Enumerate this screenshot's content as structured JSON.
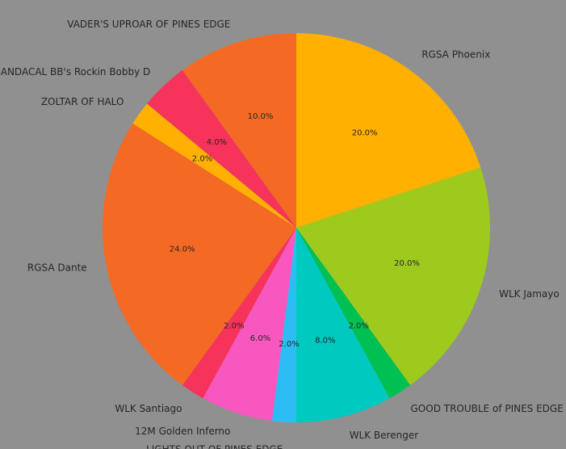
{
  "chart_data": {
    "type": "pie",
    "title": "",
    "start_angle_deg": 90,
    "direction": "clockwise",
    "legend": "none",
    "slices": [
      {
        "label": "RGSA Phoenix",
        "value": 20.0,
        "pct_label": "20.0%",
        "color": "#FFB000"
      },
      {
        "label": "WLK Jamayo",
        "value": 20.0,
        "pct_label": "20.0%",
        "color": "#9ECA1E"
      },
      {
        "label": "GOOD TROUBLE of PINES EDGE",
        "value": 2.0,
        "pct_label": "2.0%",
        "color": "#00C051"
      },
      {
        "label": "WLK Berenger",
        "value": 8.0,
        "pct_label": "8.0%",
        "color": "#00C9C0"
      },
      {
        "label": "LIGHTS OUT OF PINES EDGE",
        "value": 2.0,
        "pct_label": "2.0%",
        "color": "#2DBDF5"
      },
      {
        "label": "12M Golden Inferno",
        "value": 6.0,
        "pct_label": "6.0%",
        "color": "#F957C0"
      },
      {
        "label": "WLK Santiago",
        "value": 2.0,
        "pct_label": "2.0%",
        "color": "#F6335A"
      },
      {
        "label": "RGSA Dante",
        "value": 24.0,
        "pct_label": "24.0%",
        "color": "#F46A24"
      },
      {
        "label": "ZOLTAR OF HALO",
        "value": 2.0,
        "pct_label": "2.0%",
        "color": "#FFB000"
      },
      {
        "label": "ANDACAL BB's Rockin Bobby D",
        "value": 4.0,
        "pct_label": "4.0%",
        "color": "#F6335A"
      },
      {
        "label": "VADER'S UPROAR OF PINES EDGE",
        "value": 10.0,
        "pct_label": "10.0%",
        "color": "#F46A24"
      }
    ]
  }
}
